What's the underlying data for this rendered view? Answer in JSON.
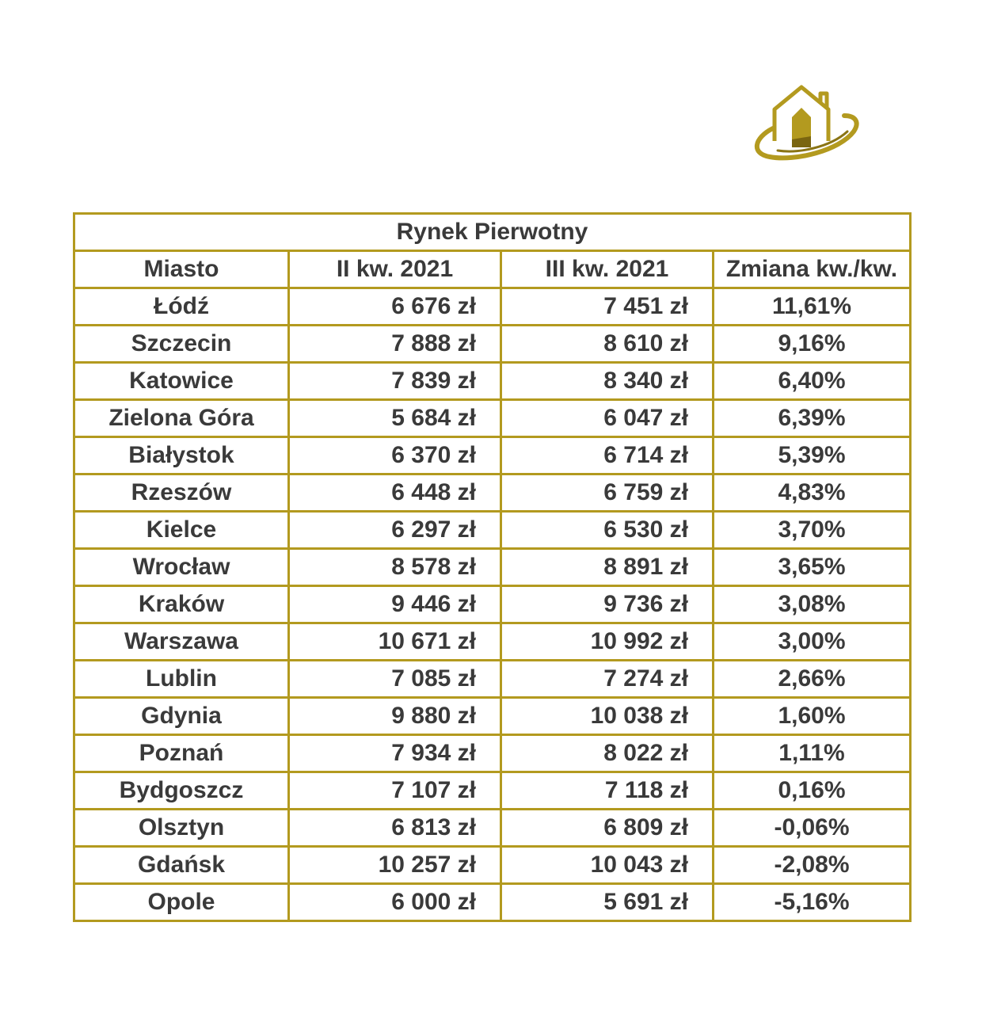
{
  "brand": {
    "accent_color": "#b39a1f",
    "logo_icon": "house-in-orbit-logo"
  },
  "table": {
    "title": "Rynek Pierwotny",
    "headers": [
      "Miasto",
      "II kw. 2021",
      "III kw. 2021",
      "Zmiana kw./kw."
    ],
    "rows": [
      {
        "city": "Łódź",
        "q2": "6 676 zł",
        "q3": "7 451 zł",
        "change": "11,61%"
      },
      {
        "city": "Szczecin",
        "q2": "7 888 zł",
        "q3": "8 610 zł",
        "change": "9,16%"
      },
      {
        "city": "Katowice",
        "q2": "7 839 zł",
        "q3": "8 340 zł",
        "change": "6,40%"
      },
      {
        "city": "Zielona Góra",
        "q2": "5 684 zł",
        "q3": "6 047 zł",
        "change": "6,39%"
      },
      {
        "city": "Białystok",
        "q2": "6 370 zł",
        "q3": "6 714 zł",
        "change": "5,39%"
      },
      {
        "city": "Rzeszów",
        "q2": "6 448 zł",
        "q3": "6 759 zł",
        "change": "4,83%"
      },
      {
        "city": "Kielce",
        "q2": "6 297 zł",
        "q3": "6 530 zł",
        "change": "3,70%"
      },
      {
        "city": "Wrocław",
        "q2": "8 578 zł",
        "q3": "8 891 zł",
        "change": "3,65%"
      },
      {
        "city": "Kraków",
        "q2": "9 446 zł",
        "q3": "9 736 zł",
        "change": "3,08%"
      },
      {
        "city": "Warszawa",
        "q2": "10 671 zł",
        "q3": "10 992 zł",
        "change": "3,00%"
      },
      {
        "city": "Lublin",
        "q2": "7 085 zł",
        "q3": "7 274 zł",
        "change": "2,66%"
      },
      {
        "city": "Gdynia",
        "q2": "9 880 zł",
        "q3": "10 038 zł",
        "change": "1,60%"
      },
      {
        "city": "Poznań",
        "q2": "7 934 zł",
        "q3": "8 022 zł",
        "change": "1,11%"
      },
      {
        "city": "Bydgoszcz",
        "q2": "7 107 zł",
        "q3": "7 118 zł",
        "change": "0,16%"
      },
      {
        "city": "Olsztyn",
        "q2": "6 813 zł",
        "q3": "6 809 zł",
        "change": "-0,06%"
      },
      {
        "city": "Gdańsk",
        "q2": "10 257 zł",
        "q3": "10 043 zł",
        "change": "-2,08%"
      },
      {
        "city": "Opole",
        "q2": "6 000 zł",
        "q3": "5 691 zł",
        "change": "-5,16%"
      }
    ]
  }
}
